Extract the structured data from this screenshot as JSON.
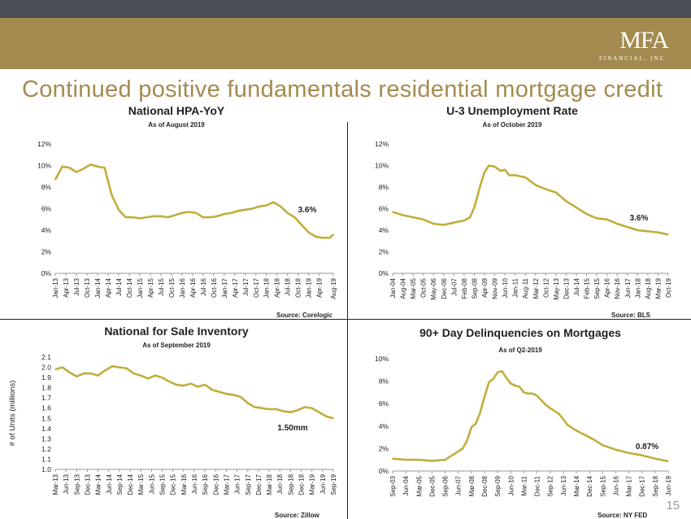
{
  "header": {
    "logo_mark": "MFA",
    "logo_sub": "FINANCIAL, INC.",
    "page_title": "Continued positive fundamentals residential mortgage credit",
    "page_number": "15"
  },
  "colors": {
    "line": "#c2ad3b",
    "brand_gold": "#a38b4f",
    "top_bar": "#4a4f55"
  },
  "charts": [
    {
      "title": "National HPA-YoY",
      "subtitle": "As of August 2019",
      "source": "Source: Corelogic",
      "annotation": "3.6%"
    },
    {
      "title": "U-3 Unemployment Rate",
      "subtitle": "As of October 2019",
      "source": "Source: BLS",
      "annotation": "3.6%"
    },
    {
      "title": "National for Sale Inventory",
      "subtitle": "As of September 2019",
      "source": "Source: Zillow",
      "annotation": "1.50mm"
    },
    {
      "title": "90+ Day Delinquencies on Mortgages",
      "subtitle": "As of Q2-2019",
      "source": "Source: NY FED",
      "annotation": "0.87%"
    }
  ],
  "chart_data": [
    {
      "type": "line",
      "title": "National HPA-YoY",
      "ylim": [
        0,
        12
      ],
      "yticks": [
        "0%",
        "2%",
        "4%",
        "6%",
        "8%",
        "10%",
        "12%"
      ],
      "tick_labels": [
        "Jan-13",
        "Apr-13",
        "Jul-13",
        "Oct-13",
        "Jan-14",
        "Apr-14",
        "Jul-14",
        "Oct-14",
        "Jan-15",
        "Apr-15",
        "Jul-15",
        "Oct-15",
        "Jan-16",
        "Apr-16",
        "Jul-16",
        "Oct-16",
        "Jan-17",
        "Apr-17",
        "Jul-17",
        "Oct-17",
        "Jan-18",
        "Apr-18",
        "Jul-18",
        "Oct-18",
        "Jan-19",
        "Apr-19",
        "Aug-19"
      ],
      "tick_positions": [
        0,
        3,
        6,
        9,
        12,
        15,
        18,
        21,
        24,
        27,
        30,
        33,
        36,
        39,
        42,
        45,
        48,
        51,
        54,
        57,
        60,
        63,
        66,
        69,
        72,
        75,
        79
      ],
      "x": [
        0,
        2,
        4,
        6,
        8,
        10,
        12,
        14,
        16,
        18,
        20,
        22,
        24,
        26,
        28,
        30,
        32,
        34,
        36,
        38,
        40,
        42,
        44,
        46,
        48,
        50,
        52,
        54,
        56,
        58,
        60,
        62,
        64,
        66,
        68,
        70,
        72,
        74,
        76,
        78,
        79
      ],
      "values": [
        8.7,
        9.9,
        9.8,
        9.4,
        9.7,
        10.1,
        9.9,
        9.8,
        7.3,
        5.9,
        5.2,
        5.2,
        5.1,
        5.2,
        5.3,
        5.3,
        5.2,
        5.4,
        5.6,
        5.7,
        5.6,
        5.2,
        5.2,
        5.3,
        5.5,
        5.6,
        5.8,
        5.9,
        6.0,
        6.2,
        6.3,
        6.6,
        6.2,
        5.6,
        5.2,
        4.5,
        3.8,
        3.4,
        3.3,
        3.3,
        3.6
      ],
      "grid": false
    },
    {
      "type": "line",
      "title": "U-3 Unemployment Rate",
      "ylim": [
        0,
        12
      ],
      "yticks": [
        "0%",
        "2%",
        "4%",
        "6%",
        "8%",
        "10%",
        "12%"
      ],
      "tick_labels": [
        "Jan-04",
        "Aug-04",
        "Mar-05",
        "Oct-05",
        "May-06",
        "Dec-06",
        "Jul-07",
        "Feb-08",
        "Sep-08",
        "Apr-09",
        "Nov-09",
        "Jun-10",
        "Jan-11",
        "Aug-11",
        "Mar-12",
        "Oct-12",
        "May-13",
        "Dec-13",
        "Jul-14",
        "Feb-15",
        "Sep-15",
        "Apr-16",
        "Nov-16",
        "Jun-17",
        "Jan-18",
        "Aug-18",
        "Mar-19",
        "Oct-19"
      ],
      "tick_positions": [
        0,
        7,
        14,
        21,
        28,
        35,
        42,
        49,
        56,
        63,
        70,
        77,
        84,
        91,
        98,
        105,
        112,
        119,
        126,
        133,
        140,
        147,
        154,
        161,
        168,
        175,
        182,
        189
      ],
      "x": [
        0,
        7,
        14,
        21,
        28,
        35,
        42,
        49,
        53,
        56,
        60,
        63,
        66,
        70,
        74,
        77,
        80,
        84,
        91,
        98,
        105,
        112,
        119,
        126,
        133,
        140,
        147,
        154,
        161,
        168,
        175,
        182,
        189
      ],
      "values": [
        5.7,
        5.4,
        5.2,
        5.0,
        4.6,
        4.5,
        4.7,
        4.9,
        5.2,
        6.1,
        8.1,
        9.4,
        10.0,
        9.9,
        9.5,
        9.6,
        9.1,
        9.1,
        8.9,
        8.2,
        7.8,
        7.5,
        6.7,
        6.1,
        5.5,
        5.1,
        5.0,
        4.6,
        4.3,
        4.0,
        3.9,
        3.8,
        3.6
      ],
      "grid": false
    },
    {
      "type": "line",
      "title": "National for Sale Inventory",
      "ylabel": "# of Units (millions)",
      "ylim": [
        1.0,
        2.1
      ],
      "yticks": [
        "1.0",
        "1.1",
        "1.2",
        "1.3",
        "1.4",
        "1.5",
        "1.6",
        "1.7",
        "1.8",
        "1.9",
        "2.0",
        "2.1"
      ],
      "tick_labels": [
        "Mar-13",
        "Jun-13",
        "Sep-13",
        "Dec-13",
        "Mar-14",
        "Jun-14",
        "Sep-14",
        "Dec-14",
        "Mar-15",
        "Jun-15",
        "Sep-15",
        "Dec-15",
        "Mar-16",
        "Jun-16",
        "Sep-16",
        "Dec-16",
        "Mar-17",
        "Jun-17",
        "Sep-17",
        "Dec-17",
        "Mar-18",
        "Jun-18",
        "Sep-18",
        "Dec-18",
        "Mar-19",
        "Jun-19",
        "Sep-19"
      ],
      "tick_positions": [
        0,
        3,
        6,
        9,
        12,
        15,
        18,
        21,
        24,
        27,
        30,
        33,
        36,
        39,
        42,
        45,
        48,
        51,
        54,
        57,
        60,
        63,
        66,
        69,
        72,
        75,
        78
      ],
      "x": [
        0,
        2,
        4,
        6,
        8,
        10,
        12,
        14,
        16,
        18,
        20,
        22,
        24,
        26,
        28,
        30,
        32,
        34,
        36,
        38,
        40,
        42,
        44,
        46,
        48,
        50,
        52,
        54,
        56,
        58,
        60,
        62,
        64,
        66,
        68,
        70,
        72,
        74,
        76,
        78
      ],
      "values": [
        1.98,
        2.0,
        1.95,
        1.91,
        1.94,
        1.94,
        1.92,
        1.97,
        2.01,
        2.0,
        1.99,
        1.94,
        1.92,
        1.89,
        1.92,
        1.9,
        1.86,
        1.83,
        1.82,
        1.84,
        1.81,
        1.83,
        1.78,
        1.76,
        1.74,
        1.73,
        1.71,
        1.65,
        1.61,
        1.6,
        1.59,
        1.59,
        1.57,
        1.56,
        1.58,
        1.61,
        1.6,
        1.56,
        1.52,
        1.5
      ],
      "grid": false
    },
    {
      "type": "line",
      "title": "90+ Day Delinquencies on Mortgages",
      "ylim": [
        0,
        10
      ],
      "yticks": [
        "0%",
        "2%",
        "4%",
        "6%",
        "8%",
        "10%"
      ],
      "tick_labels": [
        "Sep-03",
        "Jun-04",
        "Mar-05",
        "Dec-05",
        "Sep-06",
        "Jun-07",
        "Mar-08",
        "Dec-08",
        "Sep-09",
        "Jun-10",
        "Mar-11",
        "Dec-11",
        "Sep-12",
        "Jun-13",
        "Mar-14",
        "Dec-14",
        "Sep-15",
        "Jun-16",
        "Mar-17",
        "Dec-17",
        "Sep-18",
        "Jun-19"
      ],
      "tick_positions": [
        0,
        3,
        6,
        9,
        12,
        15,
        18,
        21,
        24,
        27,
        30,
        33,
        36,
        39,
        42,
        45,
        48,
        51,
        54,
        57,
        60,
        63
      ],
      "x": [
        0,
        3,
        6,
        9,
        12,
        14,
        16,
        17,
        18,
        19,
        20,
        21,
        22,
        23,
        24,
        25,
        26,
        27,
        28,
        29,
        30,
        31,
        32,
        33,
        34,
        35,
        36,
        38,
        39,
        40,
        42,
        44,
        46,
        48,
        51,
        54,
        57,
        60,
        63
      ],
      "values": [
        1.1,
        1.0,
        1.0,
        0.9,
        1.0,
        1.5,
        2.0,
        2.7,
        3.9,
        4.2,
        5.2,
        6.6,
        7.9,
        8.2,
        8.8,
        8.9,
        8.3,
        7.8,
        7.6,
        7.5,
        7.0,
        6.9,
        6.9,
        6.7,
        6.3,
        5.9,
        5.6,
        5.1,
        4.6,
        4.1,
        3.6,
        3.2,
        2.8,
        2.3,
        1.9,
        1.6,
        1.4,
        1.1,
        0.87
      ],
      "grid": false
    }
  ]
}
